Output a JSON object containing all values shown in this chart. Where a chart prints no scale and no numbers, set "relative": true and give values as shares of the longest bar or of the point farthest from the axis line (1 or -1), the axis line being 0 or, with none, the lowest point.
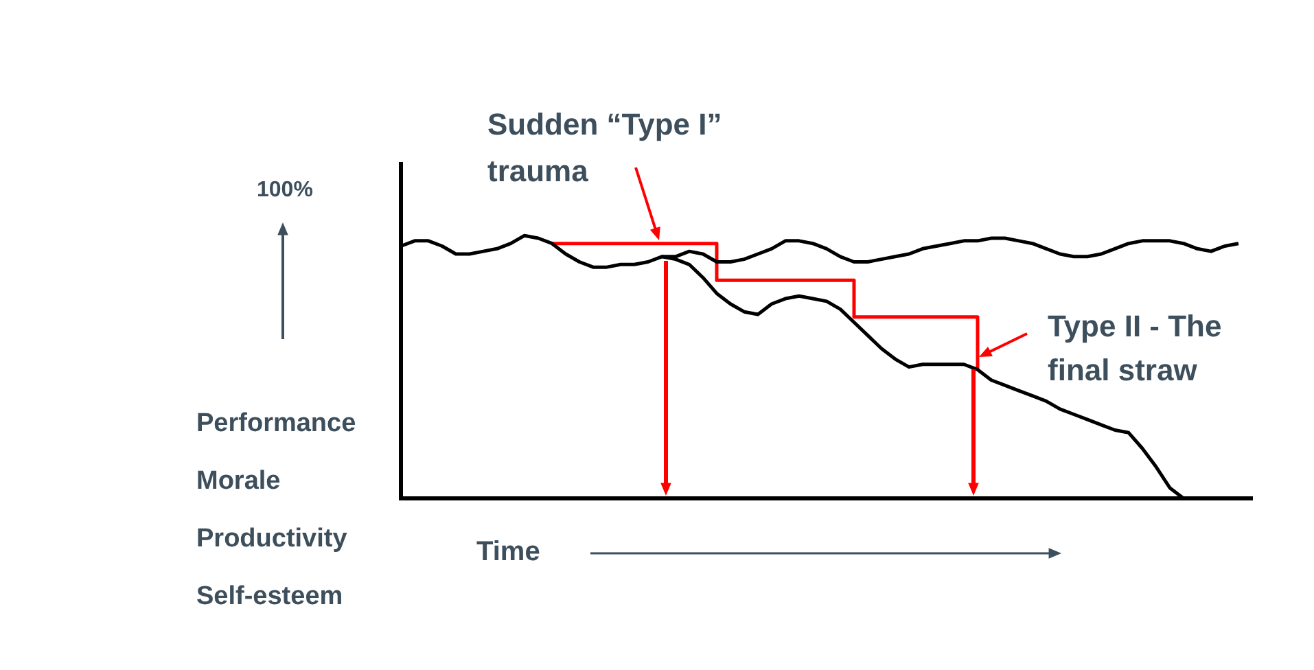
{
  "chart_data": {
    "type": "line",
    "relative": true,
    "marker": "none",
    "legend": false,
    "grid": false,
    "tick_labels": false,
    "xlabel": "Time",
    "ylabel": "Performance\nMorale\nProductivity\nSelf-esteem",
    "annotations": [
      "Sudden “Type I”\ntrauma",
      "Type II - The\nfinal straw",
      "100%"
    ],
    "categories": [
      null,
      null,
      null,
      null,
      null,
      null,
      null,
      null,
      null,
      null,
      null,
      null,
      null,
      null,
      null,
      null,
      null,
      null,
      null,
      null,
      null,
      null,
      null,
      null,
      null,
      null,
      null,
      null,
      null,
      null,
      null,
      null,
      null,
      null,
      null,
      null,
      null,
      null,
      null,
      null,
      null,
      null,
      null,
      null,
      null,
      null,
      null,
      null,
      null,
      null,
      null,
      null,
      null,
      null,
      null,
      null,
      null,
      null,
      null,
      null,
      null,
      null,
      null
    ],
    "series": [
      {
        "color": "#000000",
        "values": [
          0.96,
          0.98,
          0.98,
          0.96,
          0.93,
          0.93,
          0.94,
          0.95,
          0.97,
          1,
          0.99,
          0.97,
          0.93,
          0.9,
          0.88,
          0.88,
          0.89,
          0.89,
          0.9,
          0.92,
          0.92,
          0.94,
          0.93,
          0.9,
          0.9,
          0.91,
          0.93,
          0.95,
          0.98,
          0.98,
          0.97,
          0.95,
          0.92,
          0.9,
          0.9,
          0.91,
          0.92,
          0.93,
          0.95,
          0.96,
          0.97,
          0.98,
          0.98,
          0.99,
          0.99,
          0.98,
          0.97,
          0.95,
          0.93,
          0.92,
          0.92,
          0.93,
          0.95,
          0.97,
          0.98,
          0.98,
          0.98,
          0.97,
          0.95,
          0.94,
          0.96,
          0.97,
          null
        ]
      },
      {
        "color": "#000000",
        "values": [
          null,
          null,
          null,
          null,
          null,
          null,
          null,
          null,
          null,
          null,
          null,
          null,
          null,
          null,
          null,
          null,
          null,
          null,
          null,
          0.92,
          0.91,
          0.89,
          0.84,
          0.78,
          0.74,
          0.71,
          0.7,
          0.74,
          0.76,
          0.77,
          0.76,
          0.75,
          0.72,
          0.67,
          0.62,
          0.57,
          0.53,
          0.5,
          0.51,
          0.51,
          0.51,
          0.51,
          0.49,
          0.45,
          0.43,
          0.41,
          0.39,
          0.37,
          0.34,
          0.32,
          0.3,
          0.28,
          0.26,
          0.25,
          0.19,
          0.12,
          0.04,
          0,
          null,
          null,
          null,
          null,
          null
        ]
      },
      {
        "type": "step",
        "color": "#ff0000",
        "values": [
          null,
          null,
          null,
          null,
          null,
          null,
          null,
          null,
          null,
          null,
          null,
          0.97,
          null,
          null,
          null,
          null,
          null,
          null,
          null,
          null,
          null,
          null,
          null,
          0.83,
          null,
          null,
          null,
          null,
          null,
          null,
          null,
          null,
          null,
          0.69,
          null,
          null,
          null,
          null,
          null,
          null,
          null,
          null,
          0.49,
          null,
          null,
          null,
          null,
          null,
          null,
          null,
          null,
          null,
          null,
          null,
          null,
          null,
          null,
          null,
          null,
          null,
          null,
          null,
          null
        ]
      }
    ]
  }
}
